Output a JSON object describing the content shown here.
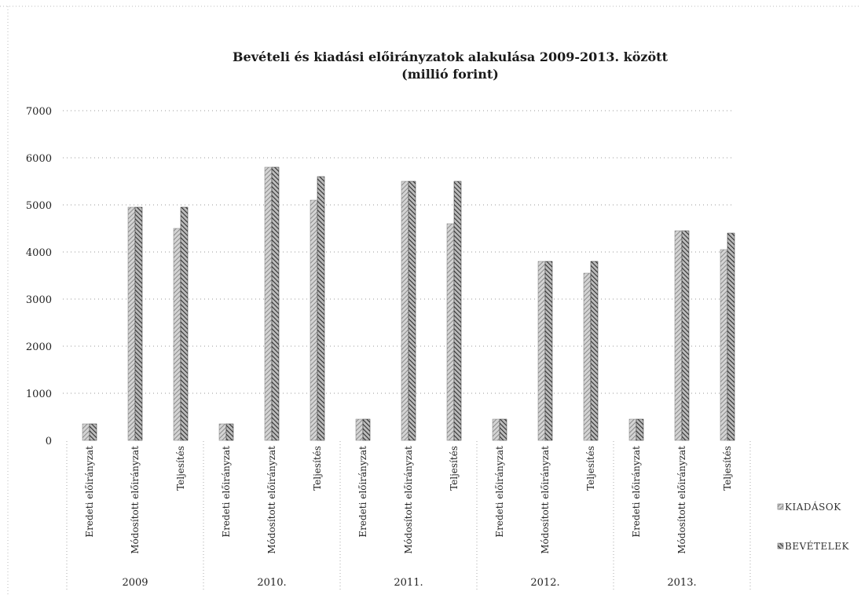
{
  "chart_data": {
    "type": "bar",
    "title": "Bevételi és kiadási előirányzatok alakulása 2009-2013. között",
    "subtitle": "(millió forint)",
    "xlabel": "",
    "ylabel": "",
    "ylim": [
      0,
      7000
    ],
    "yticks": [
      "0",
      "1000",
      "2000",
      "3000",
      "4000",
      "5000",
      "6000",
      "7000"
    ],
    "grid": true,
    "legend_position": "right",
    "groups": [
      "2009",
      "2010.",
      "2011.",
      "2012.",
      "2013."
    ],
    "categories": [
      "Eredeti előirányzat",
      "Módosított előirányzat",
      "Teljesítés",
      "Eredeti előirányzat",
      "Módosított előirányzat",
      "Teljesítés",
      "Eredeti előirányzat",
      "Módosított előirányzat",
      "Teljesítés",
      "Eredeti előirányzat",
      "Módosított előirányzat",
      "Teljesítés",
      "Eredeti előirányzat",
      "Módosított előirányzat",
      "Teljesítés"
    ],
    "series": [
      {
        "name": "KIADÁSOK",
        "color": "#9a9a9a",
        "values": [
          350,
          4950,
          4500,
          350,
          5800,
          5100,
          450,
          5500,
          4600,
          450,
          3800,
          3550,
          450,
          4450,
          4050
        ]
      },
      {
        "name": "BEVÉTELEK",
        "color": "#3a3a3a",
        "values": [
          350,
          4950,
          4950,
          350,
          5800,
          5600,
          450,
          5500,
          5500,
          450,
          3800,
          3800,
          450,
          4450,
          4400
        ]
      }
    ]
  }
}
